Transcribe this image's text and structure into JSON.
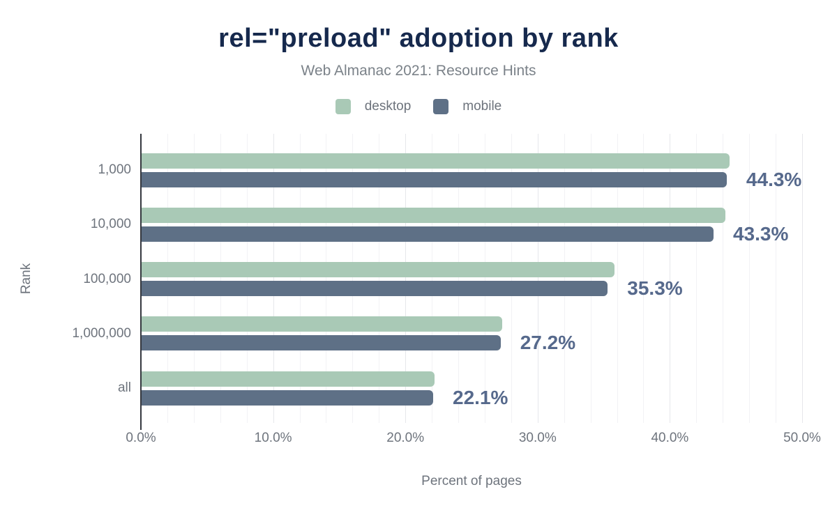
{
  "header": {
    "title": "rel=\"preload\" adoption by rank",
    "subtitle": "Web Almanac 2021: Resource Hints"
  },
  "legend": [
    {
      "label": "desktop",
      "color": "#a9c9b6"
    },
    {
      "label": "mobile",
      "color": "#5e7086"
    }
  ],
  "chart_data": {
    "type": "bar",
    "orientation": "horizontal",
    "title": "rel=\"preload\" adoption by rank",
    "subtitle": "Web Almanac 2021: Resource Hints",
    "categories": [
      "1,000",
      "10,000",
      "100,000",
      "1,000,000",
      "all"
    ],
    "series": [
      {
        "name": "desktop",
        "color": "#a9c9b6",
        "values": [
          44.5,
          44.2,
          35.8,
          27.3,
          22.2
        ]
      },
      {
        "name": "mobile",
        "color": "#5e7086",
        "values": [
          44.3,
          43.3,
          35.3,
          27.2,
          22.1
        ]
      }
    ],
    "bar_labels": {
      "series": "mobile",
      "values": [
        "44.3%",
        "43.3%",
        "35.3%",
        "27.2%",
        "22.1%"
      ]
    },
    "xlabel": "Percent of pages",
    "ylabel": "Rank",
    "xlim": [
      0,
      50
    ],
    "x_ticks": [
      {
        "value": 0,
        "label": "0.0%"
      },
      {
        "value": 10,
        "label": "10.0%"
      },
      {
        "value": 20,
        "label": "20.0%"
      },
      {
        "value": 30,
        "label": "30.0%"
      },
      {
        "value": 40,
        "label": "40.0%"
      },
      {
        "value": 50,
        "label": "50.0%"
      }
    ],
    "grid": {
      "on": true,
      "minor_step": 2,
      "major_step": 10
    },
    "legend_position": "top",
    "colors": {
      "title": "#16294d",
      "subtitle": "#7b8289",
      "axis_text": "#6e747d",
      "value_label": "#56698c",
      "axis_line": "#35383f"
    }
  }
}
